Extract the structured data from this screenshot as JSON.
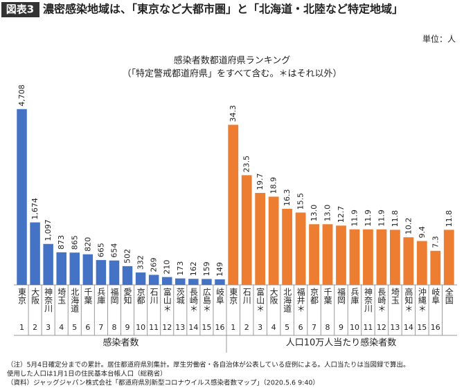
{
  "header": {
    "badge": "図表3",
    "title": "濃密感染地域は、「東京など大都市圏」と「北海道・北陸など特定地域」"
  },
  "unit": "単位：人",
  "chart_data": [
    {
      "type": "bar",
      "title": "感染者数都道府県ランキング",
      "subtitle": "（「特定警戒都道府県」をすべて含む。＊はそれ以外）",
      "x_label": "感染者数",
      "color": "#4472c4",
      "ylim": [
        0,
        5000
      ],
      "categories": [
        "東京",
        "大阪",
        "神奈川",
        "埼玉",
        "北海道",
        "千葉",
        "兵庫",
        "福岡",
        "愛知",
        "京都",
        "石川",
        "富山＊",
        "茨城",
        "長崎＊",
        "広島＊",
        "岐阜"
      ],
      "values": [
        4708,
        1674,
        1097,
        873,
        865,
        820,
        665,
        654,
        502,
        332,
        269,
        210,
        173,
        162,
        159,
        149
      ],
      "value_labels": [
        "4,708",
        "1,674",
        "1,097",
        "873",
        "865",
        "820",
        "665",
        "654",
        "502",
        "332",
        "269",
        "210",
        "173",
        "162",
        "159",
        "149"
      ],
      "ranks": [
        1,
        2,
        3,
        4,
        5,
        6,
        7,
        8,
        9,
        10,
        11,
        12,
        13,
        14,
        15,
        16
      ]
    },
    {
      "type": "bar",
      "x_label": "人口10万人当たり感染者数",
      "color": "#ed7d31",
      "ylim": [
        0,
        40
      ],
      "categories": [
        "東京",
        "石川",
        "富山＊",
        "大阪",
        "北海道",
        "福井＊",
        "京都",
        "千葉",
        "福岡",
        "兵庫",
        "神奈川",
        "長崎＊",
        "埼玉",
        "高知＊",
        "沖縄＊",
        "岐阜",
        "全国"
      ],
      "values": [
        34.3,
        23.5,
        19.7,
        18.9,
        16.3,
        15.5,
        13.0,
        13.0,
        12.7,
        11.9,
        11.9,
        11.9,
        11.8,
        10.2,
        9.4,
        7.3,
        11.8
      ],
      "value_labels": [
        "34.3",
        "23.5",
        "19.7",
        "18.9",
        "16.3",
        "15.5",
        "13.0",
        "13.0",
        "12.7",
        "11.9",
        "11.9",
        "11.9",
        "11.8",
        "10.2",
        "9.4",
        "7.3",
        "11.8"
      ],
      "ranks": [
        1,
        2,
        3,
        4,
        5,
        6,
        7,
        8,
        9,
        10,
        11,
        12,
        13,
        14,
        15,
        16,
        null
      ]
    }
  ],
  "notes": [
    "（注）5月4日確定分までの累計。居住都道府県別集計。厚生労働省・各自治体が公表している症例による。人口当たりは当図録で算出。",
    "使用した人口は1月1日の住民基本台帳人口（総務省）",
    "（資料）ジャッグジャパン株式会社「都道府県別新型コロナウイルス感染者数マップ」（2020.5.6 9:40）"
  ]
}
